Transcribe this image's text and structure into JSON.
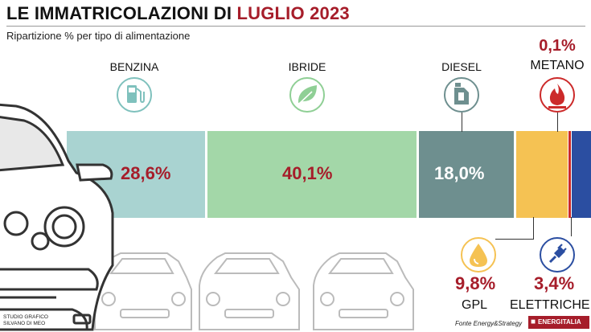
{
  "header": {
    "title_prefix": "LE IMMATRICOLAZIONI DI ",
    "title_accent": "LUGLIO 2023",
    "subtitle": "Ripartizione % per tipo di alimentazione"
  },
  "chart_data": {
    "type": "bar",
    "orientation": "horizontal-stacked",
    "unit": "%",
    "categories": [
      "BENZINA",
      "IBRIDE",
      "DIESEL",
      "GPL",
      "METANO",
      "ELETTRICHE"
    ],
    "values": [
      28.6,
      40.1,
      18.0,
      9.8,
      0.1,
      3.4
    ],
    "labels": [
      "28,6%",
      "40,1%",
      "18,0%",
      "9,8%",
      "0,1%",
      "3,4%"
    ],
    "colors": [
      "#a9d3d1",
      "#a3d7a8",
      "#6e8f8f",
      "#f5c253",
      "#cc2a2a",
      "#2b4ea1"
    ],
    "icons": [
      "fuel-pump-icon",
      "leaf-icon",
      "oil-canister-icon",
      "drop-icon",
      "flame-icon",
      "plug-icon"
    ],
    "legend": "none",
    "grid": false
  },
  "footer": {
    "credit_line1": "STUDIO GRAFICO",
    "credit_line2": "SILVANO DI MEO",
    "source": "Fonte Energy&Strategy",
    "brand": "ENERGITALIA"
  }
}
